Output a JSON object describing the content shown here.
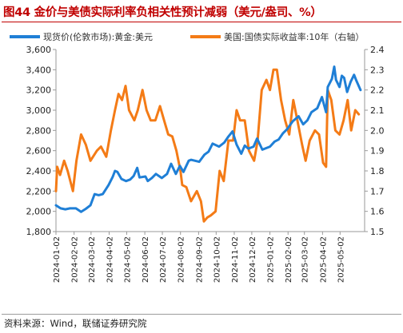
{
  "title": "图44 金价与美债实际利率负相关性预计减弱（美元/盎司、%）",
  "source": "资料来源：Wind，联储证券研究院",
  "colors": {
    "gold": "#1f7fd6",
    "yield": "#f47b16",
    "title": "#c00000"
  },
  "chart_data": {
    "type": "line",
    "x_ticks": [
      "2024-01-02",
      "2024-02-02",
      "2024-03-02",
      "2024-04-02",
      "2024-05-02",
      "2024-06-02",
      "2024-07-02",
      "2024-08-02",
      "2024-09-02",
      "2024-10-02",
      "2024-11-02",
      "2024-12-02",
      "2025-01-02",
      "2025-02-02",
      "2025-03-02",
      "2025-04-02",
      "2025-05-02"
    ],
    "y_left": {
      "ticks": [
        "1,800",
        "2,000",
        "2,200",
        "2,400",
        "2,600",
        "2,800",
        "3,000",
        "3,200",
        "3,400",
        "3,600"
      ],
      "min": 1800,
      "max": 3600
    },
    "y_right": {
      "ticks": [
        "1.5",
        "1.6",
        "1.7",
        "1.8",
        "1.9",
        "2.0",
        "2.1",
        "2.2",
        "2.3",
        "2.4"
      ],
      "min": 1.5,
      "max": 2.4,
      "label": "右轴"
    },
    "grid": false,
    "legend_position": "top",
    "series": [
      {
        "name": "现货价(伦敦市场):黄金:美元",
        "axis": "left",
        "points": [
          [
            "2024-01-02",
            2060
          ],
          [
            "2024-01-10",
            2030
          ],
          [
            "2024-01-18",
            2020
          ],
          [
            "2024-01-26",
            2030
          ],
          [
            "2024-02-05",
            2030
          ],
          [
            "2024-02-14",
            1995
          ],
          [
            "2024-02-22",
            2025
          ],
          [
            "2024-03-01",
            2060
          ],
          [
            "2024-03-08",
            2170
          ],
          [
            "2024-03-15",
            2160
          ],
          [
            "2024-03-22",
            2170
          ],
          [
            "2024-04-01",
            2260
          ],
          [
            "2024-04-08",
            2340
          ],
          [
            "2024-04-12",
            2400
          ],
          [
            "2024-04-16",
            2390
          ],
          [
            "2024-04-23",
            2320
          ],
          [
            "2024-05-01",
            2300
          ],
          [
            "2024-05-08",
            2315
          ],
          [
            "2024-05-14",
            2350
          ],
          [
            "2024-05-20",
            2430
          ],
          [
            "2024-05-24",
            2335
          ],
          [
            "2024-06-03",
            2345
          ],
          [
            "2024-06-07",
            2300
          ],
          [
            "2024-06-14",
            2330
          ],
          [
            "2024-06-21",
            2370
          ],
          [
            "2024-07-01",
            2330
          ],
          [
            "2024-07-10",
            2370
          ],
          [
            "2024-07-17",
            2470
          ],
          [
            "2024-07-25",
            2370
          ],
          [
            "2024-08-01",
            2450
          ],
          [
            "2024-08-07",
            2390
          ],
          [
            "2024-08-16",
            2500
          ],
          [
            "2024-08-20",
            2510
          ],
          [
            "2024-09-03",
            2490
          ],
          [
            "2024-09-12",
            2560
          ],
          [
            "2024-09-19",
            2590
          ],
          [
            "2024-09-26",
            2670
          ],
          [
            "2024-10-07",
            2640
          ],
          [
            "2024-10-16",
            2680
          ],
          [
            "2024-10-23",
            2740
          ],
          [
            "2024-10-30",
            2790
          ],
          [
            "2024-11-06",
            2660
          ],
          [
            "2024-11-14",
            2570
          ],
          [
            "2024-11-20",
            2650
          ],
          [
            "2024-11-26",
            2620
          ],
          [
            "2024-12-05",
            2640
          ],
          [
            "2024-12-11",
            2720
          ],
          [
            "2024-12-20",
            2610
          ],
          [
            "2025-01-02",
            2640
          ],
          [
            "2025-01-10",
            2690
          ],
          [
            "2025-01-17",
            2710
          ],
          [
            "2025-01-24",
            2770
          ],
          [
            "2025-01-31",
            2810
          ],
          [
            "2025-02-10",
            2890
          ],
          [
            "2025-02-20",
            2940
          ],
          [
            "2025-02-28",
            2860
          ],
          [
            "2025-03-07",
            2900
          ],
          [
            "2025-03-14",
            2980
          ],
          [
            "2025-03-24",
            3020
          ],
          [
            "2025-04-01",
            3130
          ],
          [
            "2025-04-08",
            2980
          ],
          [
            "2025-04-11",
            3230
          ],
          [
            "2025-04-18",
            3310
          ],
          [
            "2025-04-22",
            3430
          ],
          [
            "2025-04-25",
            3300
          ],
          [
            "2025-05-01",
            3230
          ],
          [
            "2025-05-05",
            3340
          ],
          [
            "2025-05-09",
            3320
          ],
          [
            "2025-05-14",
            3180
          ],
          [
            "2025-05-20",
            3280
          ],
          [
            "2025-05-26",
            3350
          ],
          [
            "2025-05-30",
            3290
          ],
          [
            "2025-06-06",
            3200
          ]
        ]
      },
      {
        "name": "美国:国债实际收益率:10年",
        "axis": "right",
        "points": [
          [
            "2024-01-02",
            1.7
          ],
          [
            "2024-01-04",
            1.82
          ],
          [
            "2024-01-09",
            1.78
          ],
          [
            "2024-01-16",
            1.85
          ],
          [
            "2024-01-22",
            1.8
          ],
          [
            "2024-01-31",
            1.7
          ],
          [
            "2024-02-06",
            1.85
          ],
          [
            "2024-02-14",
            1.98
          ],
          [
            "2024-02-22",
            1.93
          ],
          [
            "2024-03-01",
            1.85
          ],
          [
            "2024-03-12",
            1.9
          ],
          [
            "2024-03-19",
            1.92
          ],
          [
            "2024-03-28",
            1.87
          ],
          [
            "2024-04-05",
            2.0
          ],
          [
            "2024-04-12",
            2.1
          ],
          [
            "2024-04-18",
            2.18
          ],
          [
            "2024-04-24",
            2.15
          ],
          [
            "2024-04-30",
            2.22
          ],
          [
            "2024-05-06",
            2.1
          ],
          [
            "2024-05-15",
            2.05
          ],
          [
            "2024-05-21",
            2.1
          ],
          [
            "2024-05-29",
            2.2
          ],
          [
            "2024-06-05",
            2.1
          ],
          [
            "2024-06-12",
            2.05
          ],
          [
            "2024-06-20",
            2.05
          ],
          [
            "2024-06-28",
            2.12
          ],
          [
            "2024-07-05",
            2.05
          ],
          [
            "2024-07-12",
            1.98
          ],
          [
            "2024-07-19",
            1.97
          ],
          [
            "2024-07-26",
            1.9
          ],
          [
            "2024-08-02",
            1.8
          ],
          [
            "2024-08-05",
            1.73
          ],
          [
            "2024-08-12",
            1.72
          ],
          [
            "2024-08-20",
            1.65
          ],
          [
            "2024-08-30",
            1.7
          ],
          [
            "2024-09-06",
            1.65
          ],
          [
            "2024-09-11",
            1.55
          ],
          [
            "2024-09-17",
            1.57
          ],
          [
            "2024-09-23",
            1.58
          ],
          [
            "2024-10-01",
            1.6
          ],
          [
            "2024-10-08",
            1.8
          ],
          [
            "2024-10-15",
            1.75
          ],
          [
            "2024-10-23",
            1.95
          ],
          [
            "2024-10-31",
            1.95
          ],
          [
            "2024-11-06",
            2.1
          ],
          [
            "2024-11-12",
            2.05
          ],
          [
            "2024-11-20",
            2.05
          ],
          [
            "2024-11-27",
            1.9
          ],
          [
            "2024-12-06",
            1.85
          ],
          [
            "2024-12-12",
            1.95
          ],
          [
            "2024-12-19",
            2.2
          ],
          [
            "2024-12-27",
            2.25
          ],
          [
            "2025-01-02",
            2.2
          ],
          [
            "2025-01-08",
            2.3
          ],
          [
            "2025-01-14",
            2.3
          ],
          [
            "2025-01-21",
            2.15
          ],
          [
            "2025-01-28",
            2.05
          ],
          [
            "2025-02-04",
            1.98
          ],
          [
            "2025-02-11",
            2.15
          ],
          [
            "2025-02-18",
            2.05
          ],
          [
            "2025-02-26",
            1.93
          ],
          [
            "2025-03-04",
            1.85
          ],
          [
            "2025-03-11",
            1.95
          ],
          [
            "2025-03-20",
            2.0
          ],
          [
            "2025-03-27",
            1.98
          ],
          [
            "2025-04-03",
            1.84
          ],
          [
            "2025-04-08",
            1.82
          ],
          [
            "2025-04-11",
            2.2
          ],
          [
            "2025-04-17",
            2.15
          ],
          [
            "2025-04-24",
            2.0
          ],
          [
            "2025-05-01",
            1.98
          ],
          [
            "2025-05-08",
            2.05
          ],
          [
            "2025-05-15",
            2.15
          ],
          [
            "2025-05-21",
            2.0
          ],
          [
            "2025-05-28",
            2.1
          ],
          [
            "2025-06-03",
            2.08
          ]
        ]
      }
    ]
  }
}
